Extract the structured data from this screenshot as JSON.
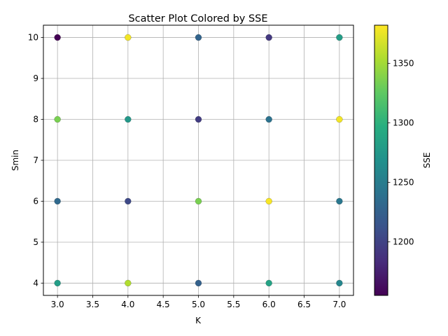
{
  "chart_data": {
    "type": "scatter",
    "title": "Scatter Plot Colored by SSE",
    "xlabel": "K",
    "ylabel": "Smin",
    "colorbar_label": "SSE",
    "xlim": [
      2.8,
      7.2
    ],
    "ylim": [
      3.7,
      10.3
    ],
    "x_ticks": [
      "3.0",
      "3.5",
      "4.0",
      "4.5",
      "5.0",
      "5.5",
      "6.0",
      "6.5",
      "7.0"
    ],
    "y_ticks": [
      "4",
      "5",
      "6",
      "7",
      "8",
      "9",
      "10"
    ],
    "colorbar_ticks": [
      "1200",
      "1250",
      "1300",
      "1350"
    ],
    "colorbar_range": [
      1155,
      1382
    ],
    "colormap": "viridis",
    "grid": true,
    "points": [
      {
        "x": 3,
        "y": 10,
        "sse": 1155
      },
      {
        "x": 3,
        "y": 8,
        "sse": 1335
      },
      {
        "x": 3,
        "y": 6,
        "sse": 1232
      },
      {
        "x": 3,
        "y": 4,
        "sse": 1280
      },
      {
        "x": 4,
        "y": 10,
        "sse": 1378
      },
      {
        "x": 4,
        "y": 8,
        "sse": 1275
      },
      {
        "x": 4,
        "y": 6,
        "sse": 1205
      },
      {
        "x": 4,
        "y": 4,
        "sse": 1355
      },
      {
        "x": 5,
        "y": 10,
        "sse": 1228
      },
      {
        "x": 5,
        "y": 8,
        "sse": 1195
      },
      {
        "x": 5,
        "y": 6,
        "sse": 1335
      },
      {
        "x": 5,
        "y": 4,
        "sse": 1225
      },
      {
        "x": 6,
        "y": 10,
        "sse": 1192
      },
      {
        "x": 6,
        "y": 8,
        "sse": 1240
      },
      {
        "x": 6,
        "y": 6,
        "sse": 1380
      },
      {
        "x": 6,
        "y": 4,
        "sse": 1285
      },
      {
        "x": 7,
        "y": 10,
        "sse": 1280
      },
      {
        "x": 7,
        "y": 8,
        "sse": 1378
      },
      {
        "x": 7,
        "y": 6,
        "sse": 1245
      },
      {
        "x": 7,
        "y": 4,
        "sse": 1258
      }
    ]
  }
}
